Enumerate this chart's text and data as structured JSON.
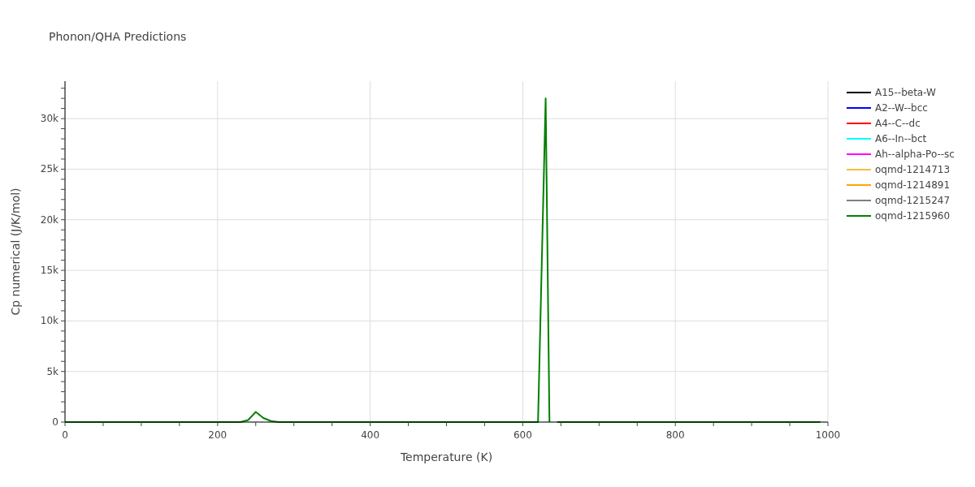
{
  "chart_data": {
    "type": "line",
    "title": "Phonon/QHA Predictions",
    "xlabel": "Temperature (K)",
    "ylabel": "Cp numerical (J/K/mol)",
    "xlim": [
      0,
      1000
    ],
    "ylim": [
      0,
      33700
    ],
    "xticks": [
      0,
      {
        "value": 50,
        "label": null
      },
      {
        "value": 100,
        "label": null
      },
      {
        "value": 150,
        "label": null
      },
      200,
      {
        "value": 250,
        "label": null
      },
      {
        "value": 300,
        "label": null
      },
      {
        "value": 350,
        "label": null
      },
      400,
      {
        "value": 450,
        "label": null
      },
      {
        "value": 500,
        "label": null
      },
      {
        "value": 550,
        "label": null
      },
      600,
      {
        "value": 650,
        "label": null
      },
      {
        "value": 700,
        "label": null
      },
      {
        "value": 750,
        "label": null
      },
      800,
      {
        "value": 850,
        "label": null
      },
      {
        "value": 900,
        "label": null
      },
      {
        "value": 950,
        "label": null
      },
      1000
    ],
    "yticks": [
      0,
      {
        "value": 1000,
        "label": null
      },
      {
        "value": 2000,
        "label": null
      },
      {
        "value": 3000,
        "label": null
      },
      {
        "value": 4000,
        "label": null
      },
      {
        "value": 5000,
        "label": "5k"
      },
      {
        "value": 6000,
        "label": null
      },
      {
        "value": 7000,
        "label": null
      },
      {
        "value": 8000,
        "label": null
      },
      {
        "value": 9000,
        "label": null
      },
      {
        "value": 10000,
        "label": "10k"
      },
      {
        "value": 11000,
        "label": null
      },
      {
        "value": 12000,
        "label": null
      },
      {
        "value": 13000,
        "label": null
      },
      {
        "value": 14000,
        "label": null
      },
      {
        "value": 15000,
        "label": "15k"
      },
      {
        "value": 16000,
        "label": null
      },
      {
        "value": 17000,
        "label": null
      },
      {
        "value": 18000,
        "label": null
      },
      {
        "value": 19000,
        "label": null
      },
      {
        "value": 20000,
        "label": "20k"
      },
      {
        "value": 21000,
        "label": null
      },
      {
        "value": 22000,
        "label": null
      },
      {
        "value": 23000,
        "label": null
      },
      {
        "value": 24000,
        "label": null
      },
      {
        "value": 25000,
        "label": "25k"
      },
      {
        "value": 26000,
        "label": null
      },
      {
        "value": 27000,
        "label": null
      },
      {
        "value": 28000,
        "label": null
      },
      {
        "value": 29000,
        "label": null
      },
      {
        "value": 30000,
        "label": "30k"
      },
      {
        "value": 31000,
        "label": null
      },
      {
        "value": 32000,
        "label": null
      },
      {
        "value": 33000,
        "label": null
      }
    ],
    "grid": true,
    "legend": "top right",
    "series": [
      {
        "name": "A15--beta-W",
        "color": "#000000"
      },
      {
        "name": "A2--W--bcc",
        "color": "#0000ff"
      },
      {
        "name": "A4--C--dc",
        "color": "#ff0000"
      },
      {
        "name": "A6--In--bct",
        "color": "#00ffff"
      },
      {
        "name": "Ah--alpha-Po--sc",
        "color": "#ff00ff"
      },
      {
        "name": "oqmd-1214713",
        "color": "#f0c040"
      },
      {
        "name": "oqmd-1214891",
        "color": "#ffa500"
      },
      {
        "name": "oqmd-1215247",
        "color": "#808080"
      },
      {
        "name": "oqmd-1215960",
        "color": "#008000",
        "x": [
          0,
          230,
          240,
          250,
          260,
          270,
          280,
          620,
          630,
          635,
          640,
          645,
          990
        ],
        "values": [
          0,
          0,
          200,
          1000,
          400,
          100,
          0,
          0,
          32000,
          0,
          null,
          0,
          0
        ]
      }
    ]
  }
}
